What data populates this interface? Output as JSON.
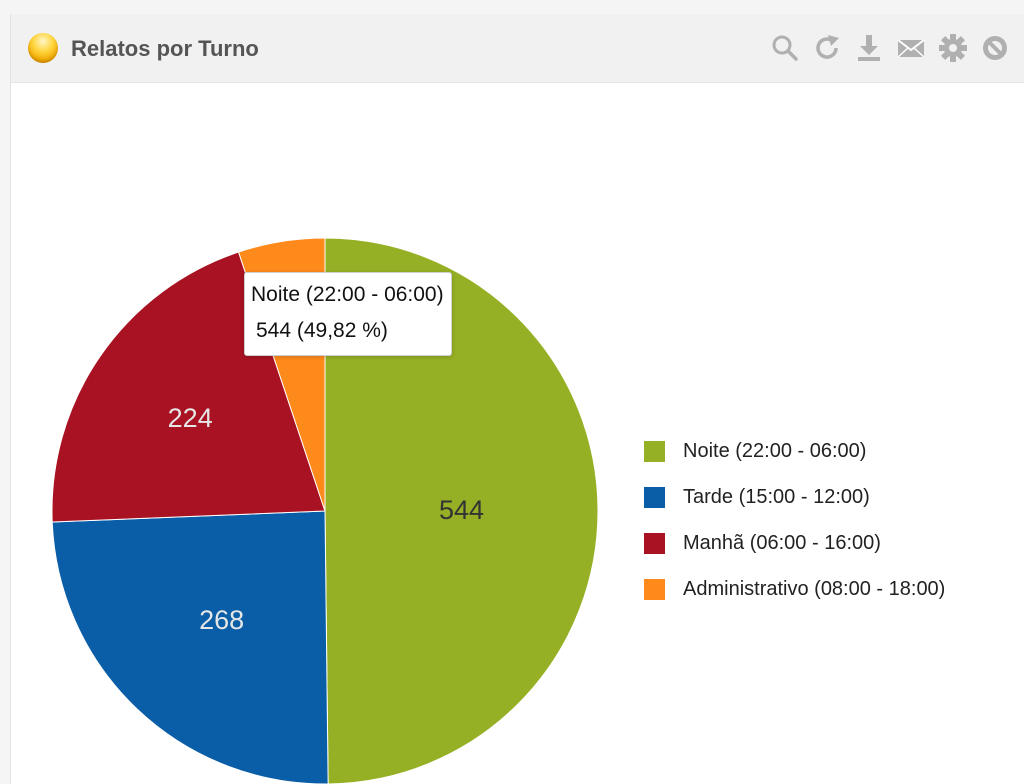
{
  "widget": {
    "title": "Relatos por Turno",
    "toolbar": [
      {
        "name": "search-icon",
        "title": "Search"
      },
      {
        "name": "refresh-icon",
        "title": "Refresh"
      },
      {
        "name": "download-icon",
        "title": "Download"
      },
      {
        "name": "email-icon",
        "title": "Email"
      },
      {
        "name": "gear-icon",
        "title": "Settings"
      },
      {
        "name": "block-icon",
        "title": "Disable"
      }
    ]
  },
  "tooltip": {
    "line1": "Noite (22:00 - 06:00)",
    "line2": "544 (49,82 %)"
  },
  "chart_data": {
    "type": "pie",
    "title": "Relatos por Turno",
    "legend_position": "right",
    "slices": [
      {
        "label": "Noite (22:00 - 06:00)",
        "value": 544,
        "color": "#95b024",
        "label_color": "#333333"
      },
      {
        "label": "Tarde (15:00 - 12:00)",
        "value": 268,
        "color": "#0a5ea8",
        "label_color": "#e6e6e6"
      },
      {
        "label": "Manhã (06:00 - 16:00)",
        "value": 224,
        "color": "#a81222",
        "label_color": "#e6e6e6"
      },
      {
        "label": "Administrativo (08:00 - 18:00)",
        "value": 56,
        "color": "#ff8a1c",
        "label_color": "#333333"
      }
    ]
  }
}
